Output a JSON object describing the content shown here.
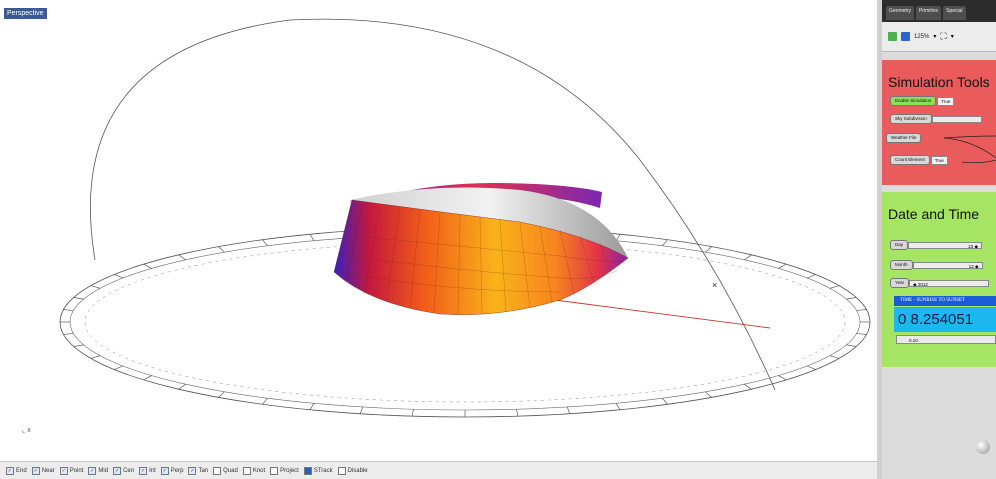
{
  "viewport": {
    "label": "Perspective",
    "axis_label": "x"
  },
  "osnap": [
    {
      "label": "End",
      "state": "on"
    },
    {
      "label": "Near",
      "state": "on"
    },
    {
      "label": "Point",
      "state": "on"
    },
    {
      "label": "Mid",
      "state": "on"
    },
    {
      "label": "Cen",
      "state": "on"
    },
    {
      "label": "Int",
      "state": "on"
    },
    {
      "label": "Perp",
      "state": "on"
    },
    {
      "label": "Tan",
      "state": "on"
    },
    {
      "label": "Quad",
      "state": "off"
    },
    {
      "label": "Knot",
      "state": "off"
    },
    {
      "label": "Project",
      "state": "off"
    },
    {
      "label": "STrack",
      "state": "filled"
    },
    {
      "label": "Disable",
      "state": "off"
    }
  ],
  "grasshopper": {
    "tabs": [
      "Geometry",
      "Primitive",
      "Special"
    ],
    "zoom": "125%",
    "simulation": {
      "title": "Simulation Tools",
      "enable_label": "Enable Simulation",
      "enable_value": "True",
      "sky_label": "Sky Subdivision",
      "weather_label": "Weather File",
      "count_label": "Count Element",
      "count_value": "True"
    },
    "date": {
      "title": "Date and Time",
      "day_label": "Day",
      "day_value": "22",
      "month_label": "Month",
      "month_value": "12",
      "year_label": "Year",
      "year_value": "2012",
      "panel_header": "TIME - SUNRISE TO SUNSET",
      "panel_value": "0 8.254051",
      "small_value": "0.10"
    }
  },
  "colors": {
    "sim_group": "#ea5c5c",
    "date_group": "#a6e564",
    "panel": "#1ab8ef",
    "accent": "#1a5bd6"
  }
}
